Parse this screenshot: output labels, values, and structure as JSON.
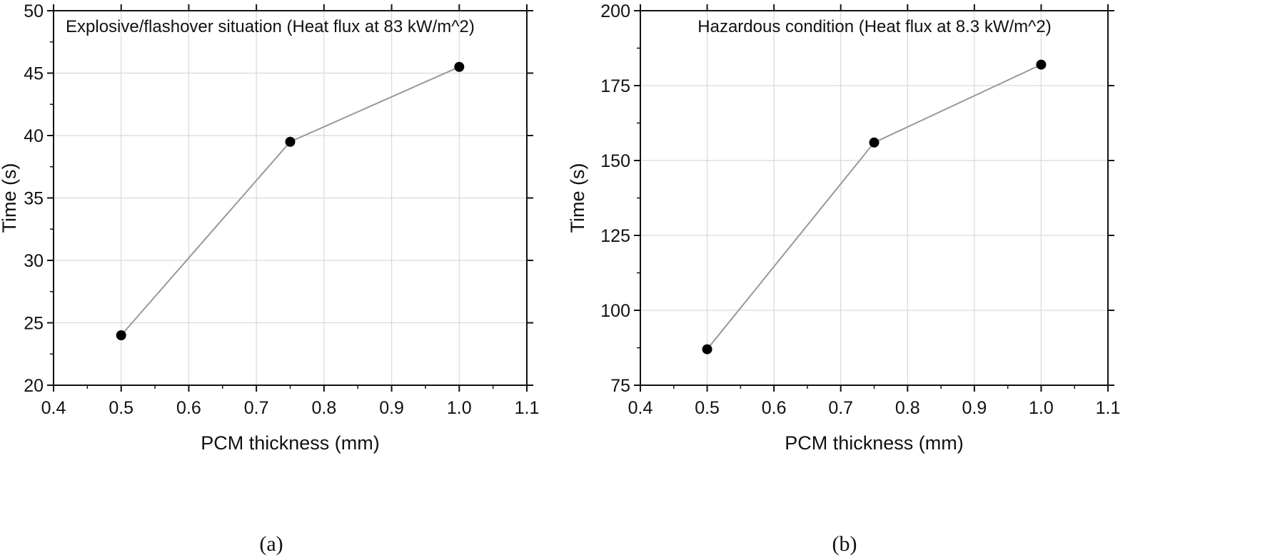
{
  "chart_data": [
    {
      "type": "line",
      "panel_label": "(a)",
      "title": "Explosive/flashover situation (Heat flux at 83 kW/m^2)",
      "xlabel": "PCM thickness (mm)",
      "ylabel": "Time (s)",
      "xlim": [
        0.4,
        1.1
      ],
      "ylim": [
        20,
        50
      ],
      "xticks": [
        "0.4",
        "0.5",
        "0.6",
        "0.7",
        "0.8",
        "0.9",
        "1.0",
        "1.1"
      ],
      "yticks": [
        "20",
        "25",
        "30",
        "35",
        "40",
        "45",
        "50"
      ],
      "grid": true,
      "x": [
        0.5,
        0.75,
        1.0
      ],
      "y": [
        24,
        39.5,
        45.5
      ],
      "colors": {
        "line": "#999999",
        "marker": "#000000",
        "grid": "#d9d9d9"
      }
    },
    {
      "type": "line",
      "panel_label": "(b)",
      "title": "Hazardous condition (Heat flux at 8.3 kW/m^2)",
      "xlabel": "PCM thickness (mm)",
      "ylabel": "Time (s)",
      "xlim": [
        0.4,
        1.1
      ],
      "ylim": [
        75,
        200
      ],
      "xticks": [
        "0.4",
        "0.5",
        "0.6",
        "0.7",
        "0.8",
        "0.9",
        "1.0",
        "1.1"
      ],
      "yticks": [
        "75",
        "100",
        "125",
        "150",
        "175",
        "200"
      ],
      "grid": true,
      "x": [
        0.5,
        0.75,
        1.0
      ],
      "y": [
        87,
        156,
        182
      ],
      "colors": {
        "line": "#999999",
        "marker": "#000000",
        "grid": "#d9d9d9"
      }
    }
  ]
}
